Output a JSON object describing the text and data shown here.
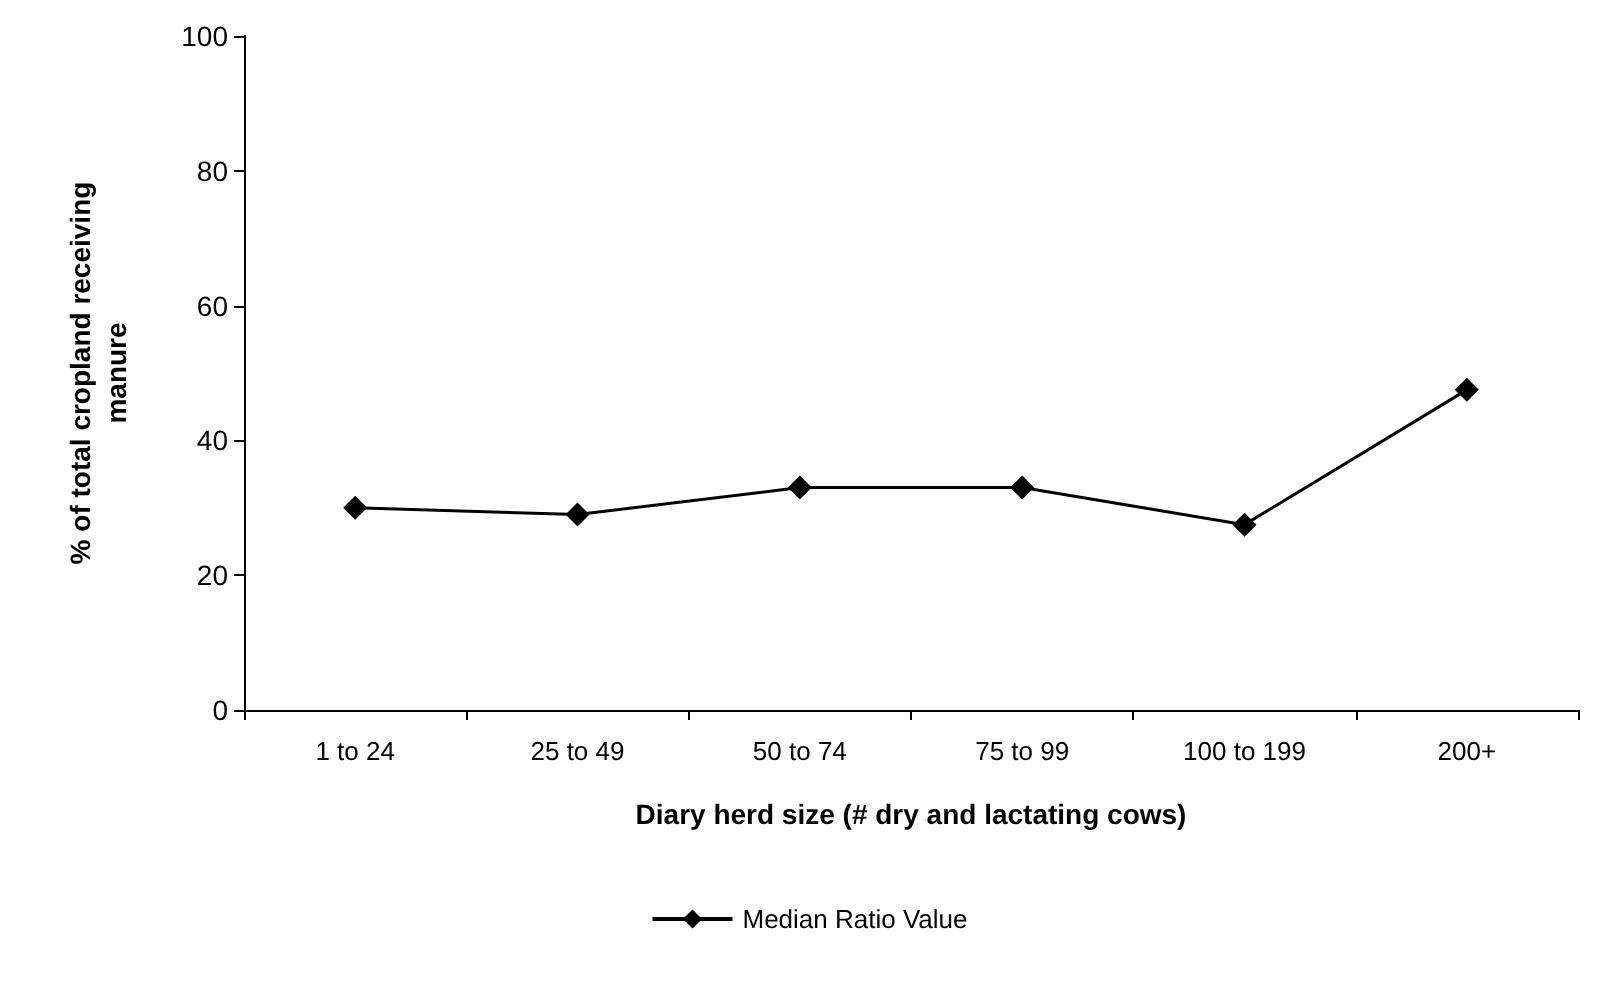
{
  "chart_data": {
    "type": "line",
    "xlabel": "Diary herd size (# dry and lactating cows)",
    "ylabel": "% of total cropland receiving\nmanure",
    "categories": [
      "1 to 24",
      "25 to 49",
      "50 to 74",
      "75 to 99",
      "100 to 199",
      "200+"
    ],
    "series": [
      {
        "name": "Median Ratio Value",
        "color": "#000000",
        "values": [
          30,
          29,
          33,
          33,
          27.5,
          47.5
        ]
      }
    ],
    "ylim": [
      0,
      100
    ],
    "yticks": [
      0,
      20,
      40,
      60,
      80,
      100
    ],
    "grid": false,
    "legend": "bottom",
    "marker": "diamond",
    "line_style": "solid"
  }
}
